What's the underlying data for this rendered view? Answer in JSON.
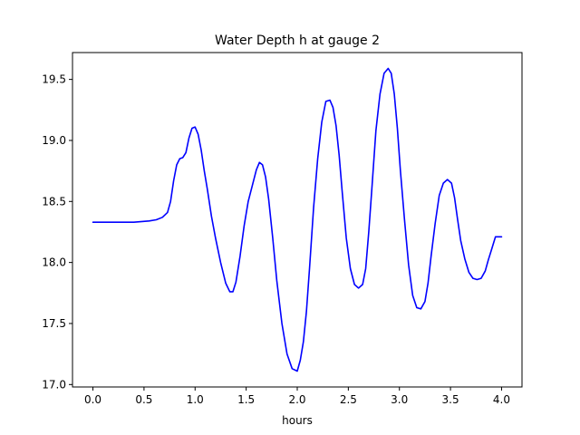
{
  "chart_data": {
    "type": "line",
    "title": "Water Depth h at gauge 2",
    "xlabel": "hours",
    "ylabel": "",
    "xlim": [
      -0.2,
      4.2
    ],
    "ylim": [
      16.98,
      19.72
    ],
    "xticks": [
      0.0,
      0.5,
      1.0,
      1.5,
      2.0,
      2.5,
      3.0,
      3.5,
      4.0
    ],
    "xtick_labels": [
      "0.0",
      "0.5",
      "1.0",
      "1.5",
      "2.0",
      "2.5",
      "3.0",
      "3.5",
      "4.0"
    ],
    "yticks": [
      17.0,
      17.5,
      18.0,
      18.5,
      19.0,
      19.5
    ],
    "ytick_labels": [
      "17.0",
      "17.5",
      "18.0",
      "18.5",
      "19.0",
      "19.5"
    ],
    "grid": false,
    "legend": "none",
    "series": [
      {
        "color": "#0000ff",
        "x": [
          0.0,
          0.2,
          0.4,
          0.55,
          0.62,
          0.68,
          0.73,
          0.76,
          0.79,
          0.82,
          0.85,
          0.88,
          0.91,
          0.94,
          0.97,
          1.0,
          1.03,
          1.06,
          1.09,
          1.12,
          1.16,
          1.2,
          1.25,
          1.3,
          1.34,
          1.37,
          1.4,
          1.44,
          1.48,
          1.52,
          1.56,
          1.6,
          1.63,
          1.66,
          1.69,
          1.72,
          1.76,
          1.8,
          1.85,
          1.9,
          1.95,
          2.0,
          2.03,
          2.06,
          2.09,
          2.12,
          2.16,
          2.2,
          2.24,
          2.28,
          2.32,
          2.35,
          2.38,
          2.41,
          2.44,
          2.48,
          2.52,
          2.56,
          2.6,
          2.64,
          2.67,
          2.7,
          2.73,
          2.77,
          2.81,
          2.85,
          2.89,
          2.92,
          2.95,
          2.98,
          3.01,
          3.05,
          3.09,
          3.13,
          3.17,
          3.21,
          3.25,
          3.28,
          3.31,
          3.35,
          3.39,
          3.43,
          3.47,
          3.51,
          3.54,
          3.57,
          3.6,
          3.64,
          3.68,
          3.72,
          3.76,
          3.8,
          3.84,
          3.87,
          3.9,
          3.94,
          3.97,
          4.0
        ],
        "y": [
          18.33,
          18.33,
          18.33,
          18.34,
          18.35,
          18.37,
          18.41,
          18.5,
          18.67,
          18.8,
          18.85,
          18.86,
          18.9,
          19.02,
          19.1,
          19.11,
          19.05,
          18.92,
          18.75,
          18.6,
          18.38,
          18.2,
          18.0,
          17.83,
          17.76,
          17.76,
          17.84,
          18.05,
          18.3,
          18.5,
          18.63,
          18.76,
          18.82,
          18.8,
          18.7,
          18.52,
          18.2,
          17.85,
          17.5,
          17.25,
          17.13,
          17.11,
          17.2,
          17.35,
          17.6,
          17.95,
          18.45,
          18.85,
          19.15,
          19.32,
          19.33,
          19.27,
          19.12,
          18.88,
          18.58,
          18.2,
          17.95,
          17.82,
          17.79,
          17.82,
          17.95,
          18.25,
          18.6,
          19.08,
          19.38,
          19.55,
          19.59,
          19.55,
          19.38,
          19.1,
          18.75,
          18.35,
          17.98,
          17.73,
          17.63,
          17.62,
          17.68,
          17.83,
          18.05,
          18.32,
          18.55,
          18.65,
          18.68,
          18.65,
          18.53,
          18.35,
          18.18,
          18.03,
          17.92,
          17.87,
          17.86,
          17.87,
          17.93,
          18.02,
          18.1,
          18.21,
          18.21,
          18.21
        ]
      }
    ]
  }
}
